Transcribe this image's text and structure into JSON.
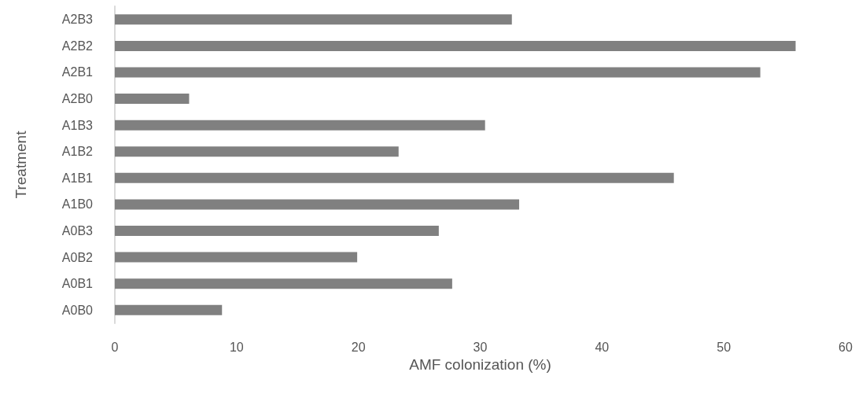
{
  "chart_data": {
    "type": "bar",
    "orientation": "horizontal",
    "xlabel": "AMF colonization (%)",
    "ylabel": "Treatment",
    "categories": [
      "A2B3",
      "A2B2",
      "A2B1",
      "A2B0",
      "A1B3",
      "A1B2",
      "A1B1",
      "A1B0",
      "A0B3",
      "A0B2",
      "A0B1",
      "A0B0"
    ],
    "values": [
      32.6,
      55.9,
      53.0,
      6.1,
      30.4,
      23.3,
      45.9,
      33.2,
      26.6,
      19.9,
      27.7,
      8.8
    ],
    "color": "#808080",
    "xlim": [
      0,
      60
    ],
    "xticks": [
      0,
      10,
      20,
      30,
      40,
      50,
      60
    ],
    "grid": false
  }
}
